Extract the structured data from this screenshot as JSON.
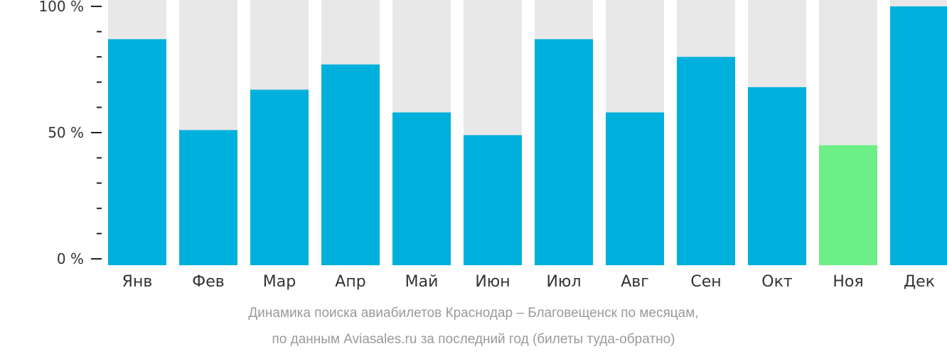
{
  "chart_data": {
    "type": "bar",
    "categories": [
      "Янв",
      "Фев",
      "Мар",
      "Апр",
      "Май",
      "Июн",
      "Июл",
      "Авг",
      "Сен",
      "Окт",
      "Ноя",
      "Дек"
    ],
    "values": [
      87,
      51,
      67,
      77,
      58,
      49,
      87,
      58,
      80,
      68,
      45,
      100
    ],
    "highlight_index": 10,
    "ylim": [
      0,
      100
    ],
    "y_ticks": [
      {
        "value": 100,
        "label": "100 %"
      },
      {
        "value": 50,
        "label": "50 %"
      },
      {
        "value": 0,
        "label": "0 %"
      }
    ],
    "y_minor_step": 10,
    "title_line1": "Динамика поиска авиабилетов Краснодар – Благовещенск по месяцам,",
    "title_line2": "по данным Aviasales.ru за последний год (билеты туда-обратно)",
    "colors": {
      "bar": "#00b0dc",
      "highlight": "#6cef86",
      "track": "#e8e8e8",
      "axis": "#222222",
      "caption": "#9a9a9a"
    }
  }
}
